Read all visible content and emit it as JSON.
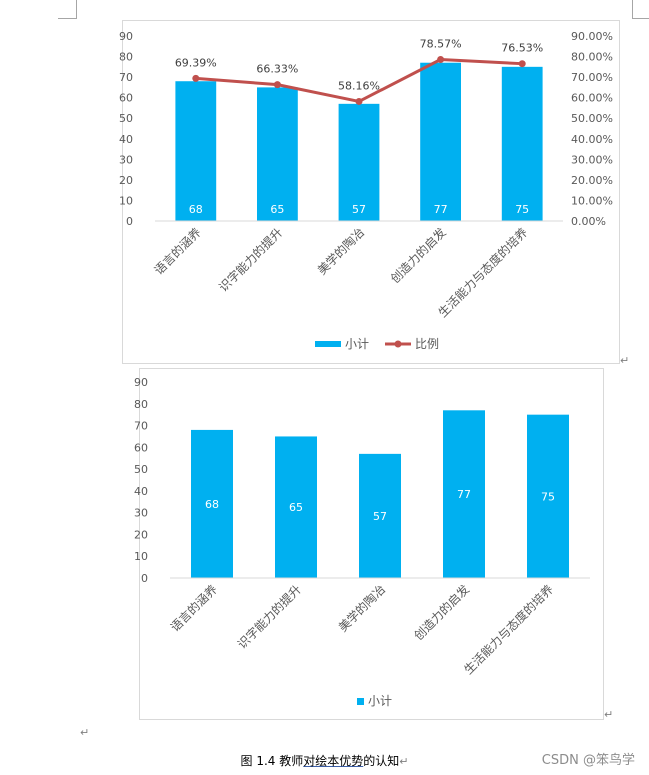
{
  "chart_data": [
    {
      "type": "bar",
      "categories": [
        "语言的涵养",
        "识字能力的提升",
        "美学的陶冶",
        "创造力的启发",
        "生活能力与态度的培养"
      ],
      "series": [
        {
          "name": "小计",
          "type": "bar",
          "axis": "left",
          "values": [
            68,
            65,
            57,
            77,
            75
          ],
          "labels": [
            "68",
            "65",
            "57",
            "77",
            "75"
          ]
        },
        {
          "name": "比例",
          "type": "line",
          "axis": "right",
          "values": [
            69.39,
            66.33,
            58.16,
            78.57,
            76.53
          ],
          "labels": [
            "69.39%",
            "66.33%",
            "58.16%",
            "78.57%",
            "76.53%"
          ]
        }
      ],
      "y_ticks": [
        "0",
        "10",
        "20",
        "30",
        "40",
        "50",
        "60",
        "70",
        "80",
        "90"
      ],
      "y2_ticks": [
        "0.00%",
        "10.00%",
        "20.00%",
        "30.00%",
        "40.00%",
        "50.00%",
        "60.00%",
        "70.00%",
        "80.00%",
        "90.00%"
      ],
      "ylim": [
        0,
        90
      ],
      "y2lim": [
        0,
        90
      ],
      "legend": [
        "小计",
        "比例"
      ],
      "legend_position": "bottom",
      "colors": {
        "bar": "#00b0f0",
        "line": "#c0504d"
      }
    },
    {
      "type": "bar",
      "categories": [
        "语言的涵养",
        "识字能力的提升",
        "美学的陶冶",
        "创造力的启发",
        "生活能力与态度的培养"
      ],
      "series": [
        {
          "name": "小计",
          "values": [
            68,
            65,
            57,
            77,
            75
          ],
          "labels": [
            "68",
            "65",
            "57",
            "77",
            "75"
          ]
        }
      ],
      "y_ticks": [
        "0",
        "10",
        "20",
        "30",
        "40",
        "50",
        "60",
        "70",
        "80",
        "90"
      ],
      "ylim": [
        0,
        90
      ],
      "legend": [
        "小计"
      ],
      "legend_position": "bottom",
      "colors": {
        "bar": "#00b0f0"
      }
    }
  ],
  "caption": {
    "prefix": "图 1.4 教师",
    "underlined": "对绘本优势",
    "suffix": "的认知"
  },
  "para_mark": "↵",
  "watermark": "CSDN @笨鸟学"
}
